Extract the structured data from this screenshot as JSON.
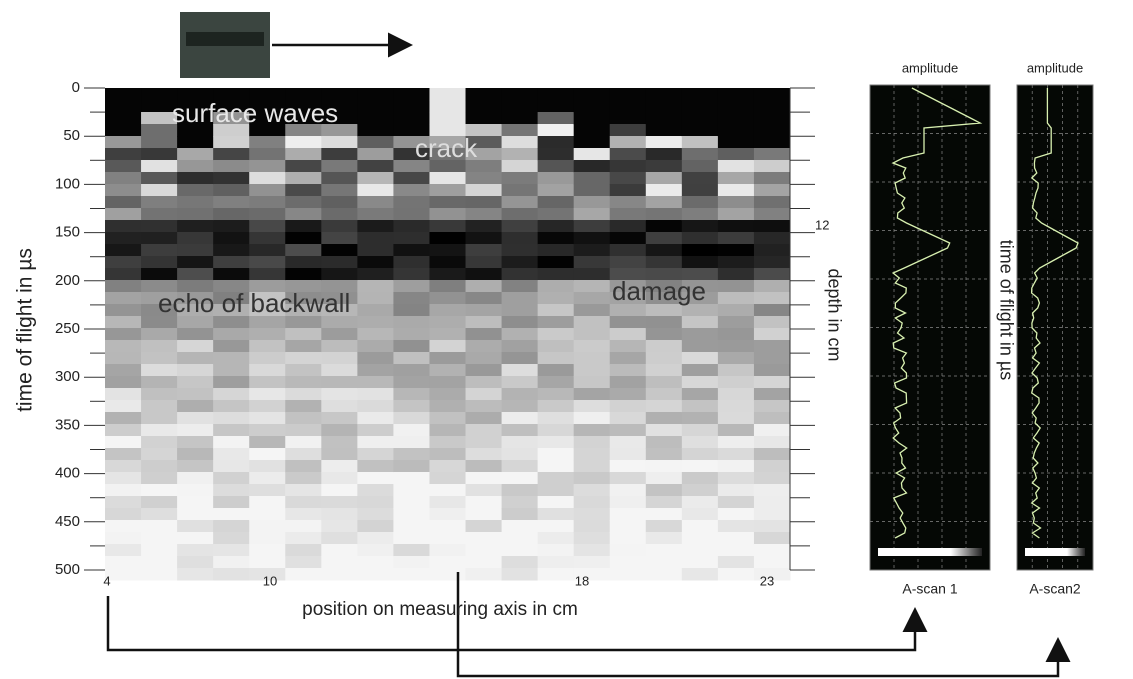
{
  "bscan": {
    "y_axis_label": "time of flight in µs",
    "yticks": [
      "0",
      "50",
      "100",
      "150",
      "200",
      "250",
      "300",
      "350",
      "400",
      "450",
      "500"
    ],
    "x_axis_label": "position on measuring axis in cm",
    "xticks": [
      "4",
      "10",
      "18",
      "23"
    ],
    "depth_label": "depth in cm",
    "depth_tick": "12",
    "annotations": [
      "surface waves",
      "crack",
      "echo of backwall",
      "damage"
    ]
  },
  "ascans": [
    {
      "header": "amplitude",
      "caption": "A-scan 1"
    },
    {
      "header": "amplitude",
      "caption": "A-scan2"
    }
  ],
  "ascan_axis_label": "time of flight in µs"
}
